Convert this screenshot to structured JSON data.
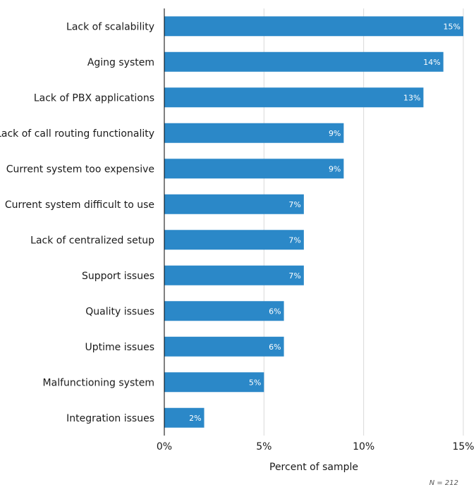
{
  "chart_data": {
    "type": "bar",
    "orientation": "horizontal",
    "categories": [
      "Lack of scalability",
      "Aging system",
      "Lack of PBX applications",
      "Lack of call routing functionality",
      "Current system too expensive",
      "Current system difficult to use",
      "Lack of centralized setup",
      "Support issues",
      "Quality issues",
      "Uptime issues",
      "Malfunctioning system",
      "Integration issues"
    ],
    "values": [
      15,
      14,
      13,
      9,
      9,
      7,
      7,
      7,
      6,
      6,
      5,
      2
    ],
    "value_labels": [
      "15%",
      "14%",
      "13%",
      "9%",
      "9%",
      "7%",
      "7%",
      "7%",
      "6%",
      "6%",
      "5%",
      "2%"
    ],
    "xlabel": "Percent of sample",
    "ylabel": "",
    "xlim": [
      0,
      15
    ],
    "xticks": [
      0,
      5,
      10,
      15
    ],
    "xtick_labels": [
      "0%",
      "5%",
      "10%",
      "15%"
    ],
    "grid": true,
    "bar_color": "#2b88c8",
    "note": "N = 212"
  }
}
